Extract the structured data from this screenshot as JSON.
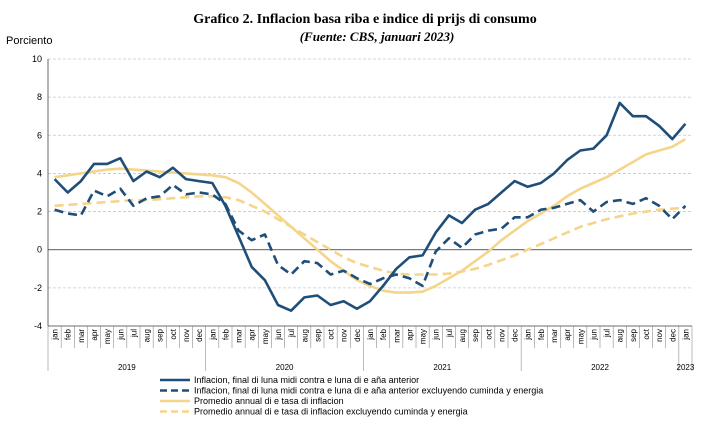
{
  "chart_data": {
    "type": "line",
    "title": "Grafico 2. Inflacion basa riba e indice di prijs di consumo",
    "subtitle": "(Fuente: CBS, januari 2023)",
    "ylabel": "Porciento",
    "xlabel": "",
    "ylim": [
      -4,
      10
    ],
    "yticks": [
      -4,
      -2,
      0,
      2,
      4,
      6,
      8,
      10
    ],
    "grid": true,
    "legend_position": "bottom",
    "categories": [
      "jan",
      "feb",
      "mar",
      "apr",
      "may",
      "jun",
      "jul",
      "aug",
      "sep",
      "oct",
      "nov",
      "dec",
      "jan",
      "feb",
      "mar",
      "apr",
      "may",
      "jun",
      "jul",
      "aug",
      "sep",
      "oct",
      "nov",
      "dec",
      "jan",
      "feb",
      "mar",
      "apr",
      "may",
      "jun",
      "jul",
      "aug",
      "sep",
      "oct",
      "nov",
      "dec",
      "jan",
      "feb",
      "mar",
      "apr",
      "may",
      "jun",
      "jul",
      "aug",
      "sep",
      "oct",
      "nov",
      "dec",
      "jan"
    ],
    "years": [
      {
        "label": "2019",
        "start": 0,
        "end": 11
      },
      {
        "label": "2020",
        "start": 12,
        "end": 23
      },
      {
        "label": "2021",
        "start": 24,
        "end": 35
      },
      {
        "label": "2022",
        "start": 36,
        "end": 47
      },
      {
        "label": "2023",
        "start": 48,
        "end": 48
      }
    ],
    "series": [
      {
        "name": "Inflacion, final di luna midi contra e luna di e aña anterior",
        "color": "#1f4e79",
        "dash": "solid",
        "values": [
          3.7,
          3.0,
          3.6,
          4.5,
          4.5,
          4.8,
          3.6,
          4.1,
          3.8,
          4.3,
          3.7,
          3.6,
          3.5,
          2.3,
          0.7,
          -0.9,
          -1.6,
          -2.9,
          -3.2,
          -2.5,
          -2.4,
          -2.9,
          -2.7,
          -3.1,
          -2.7,
          -1.9,
          -1.0,
          -0.4,
          -0.3,
          0.9,
          1.8,
          1.4,
          2.1,
          2.4,
          3.0,
          3.6,
          3.3,
          3.5,
          4.0,
          4.7,
          5.2,
          5.3,
          6.0,
          7.7,
          7.0,
          7.0,
          6.5,
          5.8,
          6.6
        ]
      },
      {
        "name": "Inflacion, final di luna midi contra e luna di e aña anterior excluyendo cuminda y energia",
        "color": "#1f4e79",
        "dash": "dashed",
        "values": [
          2.1,
          1.9,
          1.8,
          3.1,
          2.8,
          3.2,
          2.3,
          2.7,
          2.8,
          3.4,
          2.9,
          3.0,
          2.9,
          2.4,
          1.0,
          0.5,
          0.8,
          -0.8,
          -1.3,
          -0.6,
          -0.7,
          -1.3,
          -1.1,
          -1.5,
          -1.8,
          -1.5,
          -1.3,
          -1.5,
          -1.9,
          -0.1,
          0.6,
          0.1,
          0.8,
          1.0,
          1.1,
          1.7,
          1.7,
          2.1,
          2.2,
          2.4,
          2.6,
          2.0,
          2.5,
          2.6,
          2.4,
          2.7,
          2.3,
          1.6,
          2.3
        ]
      },
      {
        "name": "Promedio annual di e tasa di inflacion",
        "color": "#f5d58a",
        "dash": "solid",
        "values": [
          3.8,
          3.9,
          4.0,
          4.1,
          4.2,
          4.25,
          4.2,
          4.15,
          4.1,
          4.05,
          4.0,
          3.95,
          3.9,
          3.8,
          3.5,
          3.0,
          2.4,
          1.8,
          1.2,
          0.6,
          0.0,
          -0.6,
          -1.1,
          -1.6,
          -1.9,
          -2.15,
          -2.25,
          -2.25,
          -2.2,
          -1.9,
          -1.5,
          -1.1,
          -0.6,
          -0.1,
          0.5,
          1.0,
          1.5,
          1.9,
          2.3,
          2.8,
          3.2,
          3.5,
          3.8,
          4.2,
          4.6,
          5.0,
          5.2,
          5.4,
          5.8
        ]
      },
      {
        "name": "Promedio annual di e tasa di inflacion excluyendo cuminda y energia",
        "color": "#f5d58a",
        "dash": "dashed",
        "values": [
          2.3,
          2.35,
          2.4,
          2.45,
          2.5,
          2.55,
          2.6,
          2.6,
          2.65,
          2.7,
          2.75,
          2.8,
          2.8,
          2.75,
          2.6,
          2.3,
          2.0,
          1.6,
          1.2,
          0.8,
          0.4,
          0.0,
          -0.4,
          -0.7,
          -0.9,
          -1.1,
          -1.25,
          -1.3,
          -1.3,
          -1.3,
          -1.25,
          -1.15,
          -1.0,
          -0.8,
          -0.55,
          -0.3,
          0.0,
          0.3,
          0.6,
          0.9,
          1.2,
          1.4,
          1.6,
          1.75,
          1.9,
          2.0,
          2.1,
          2.15,
          2.2
        ]
      }
    ]
  }
}
